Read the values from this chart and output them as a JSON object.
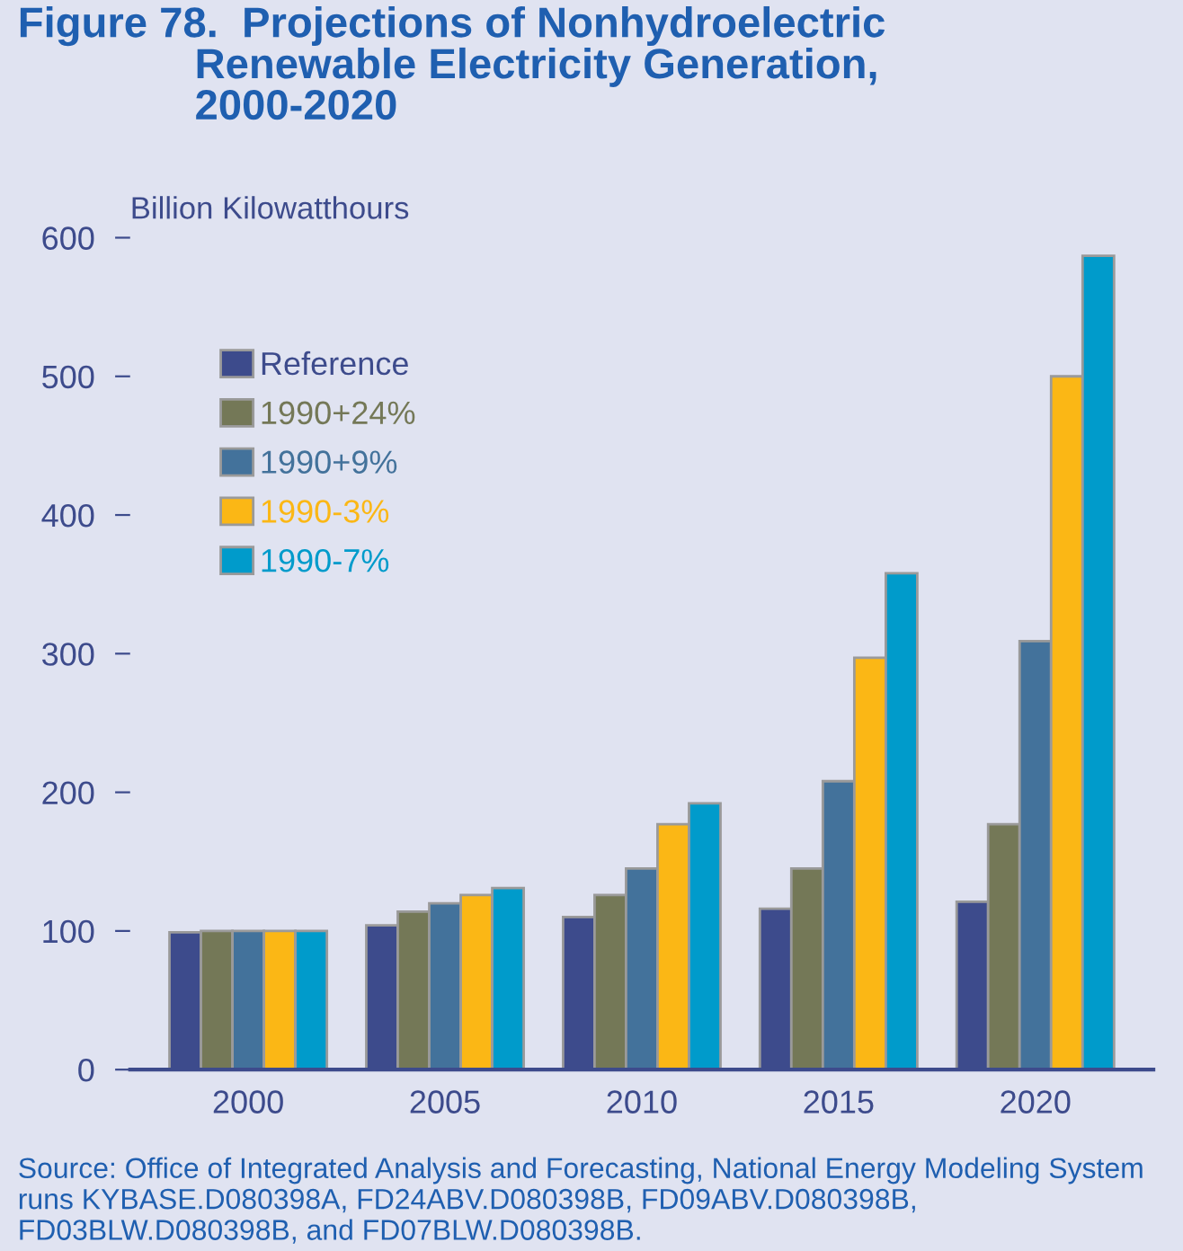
{
  "chart_data": {
    "type": "bar",
    "title": "Figure 78.  Projections of Nonhydroelectric\n               Renewable Electricity Generation,\n               2000-2020",
    "ylabel": "Billion Kilowatthours",
    "categories": [
      "2000",
      "2005",
      "2010",
      "2015",
      "2020"
    ],
    "series": [
      {
        "name": "Reference",
        "color": "#3d4b8c",
        "values": [
          99,
          104,
          110,
          116,
          121
        ]
      },
      {
        "name": "1990+24%",
        "color": "#747857",
        "values": [
          100,
          114,
          126,
          145,
          177
        ]
      },
      {
        "name": "1990+9%",
        "color": "#43729b",
        "values": [
          100,
          120,
          145,
          208,
          309
        ]
      },
      {
        "name": "1990-3%",
        "color": "#fbb715",
        "values": [
          100,
          126,
          177,
          297,
          500
        ]
      },
      {
        "name": "1990-7%",
        "color": "#009bcb",
        "values": [
          100,
          131,
          192,
          358,
          587
        ]
      }
    ],
    "ylim": [
      0,
      600
    ],
    "yticks": [
      0,
      100,
      200,
      300,
      400,
      500,
      600
    ],
    "grid": false,
    "legend": "top left",
    "annotations": [
      "Source: Office of Integrated Analysis and Forecasting, National Energy Modeling System runs KYBASE.D080398A, FD24ABV.D080398B, FD09ABV.D080398B, FD03BLW.D080398B, and FD07BLW.D080398B."
    ]
  }
}
